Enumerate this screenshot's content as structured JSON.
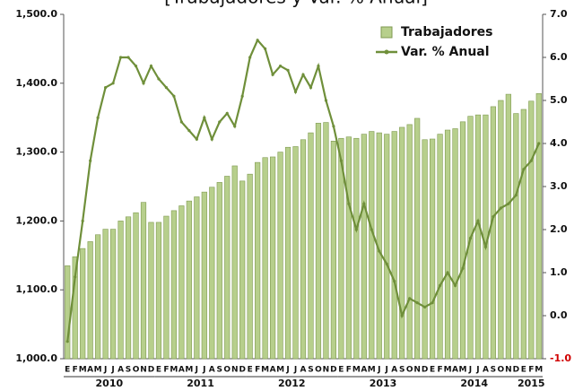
{
  "chart_data": {
    "type": "bar-line",
    "title": "[Trabajadores y Var. % Anual]",
    "categories": [
      "E",
      "F",
      "M",
      "A",
      "M",
      "J",
      "J",
      "A",
      "S",
      "O",
      "N",
      "D",
      "E",
      "F",
      "M",
      "A",
      "M",
      "J",
      "J",
      "A",
      "S",
      "O",
      "N",
      "D",
      "E",
      "F",
      "M",
      "A",
      "M",
      "J",
      "J",
      "A",
      "S",
      "O",
      "N",
      "D",
      "E",
      "F",
      "M",
      "A",
      "M",
      "J",
      "J",
      "A",
      "S",
      "O",
      "N",
      "D",
      "E",
      "F",
      "M",
      "A",
      "M",
      "J",
      "J",
      "A",
      "S",
      "O",
      "N",
      "D",
      "E",
      "F",
      "M"
    ],
    "years": [
      "2010",
      "2011",
      "2012",
      "2013",
      "2014",
      "2015"
    ],
    "series": [
      {
        "name": "Trabajadores",
        "type": "bar",
        "color": "#b7cf8c",
        "axis": "y",
        "values": [
          1135,
          1148,
          1160,
          1170,
          1180,
          1188,
          1188,
          1200,
          1206,
          1212,
          1227,
          1198,
          1198,
          1207,
          1215,
          1222,
          1229,
          1235,
          1242,
          1249,
          1256,
          1265,
          1280,
          1258,
          1268,
          1285,
          1292,
          1293,
          1300,
          1307,
          1308,
          1318,
          1328,
          1342,
          1343,
          1316,
          1320,
          1322,
          1320,
          1326,
          1330,
          1328,
          1326,
          1330,
          1336,
          1340,
          1349,
          1318,
          1319,
          1326,
          1332,
          1334,
          1344,
          1352,
          1354,
          1354,
          1366,
          1375,
          1384,
          1356,
          1362,
          1374,
          1385
        ]
      },
      {
        "name": "Var. % Anual",
        "type": "line",
        "color": "#6f8f3a",
        "axis": "y2",
        "values": [
          -0.6,
          0.9,
          2.2,
          3.6,
          4.6,
          5.3,
          5.4,
          6.0,
          6.0,
          5.8,
          5.4,
          5.8,
          5.5,
          5.3,
          5.1,
          4.5,
          4.3,
          4.1,
          4.6,
          4.1,
          4.5,
          4.7,
          4.4,
          5.1,
          6.0,
          6.4,
          6.2,
          5.6,
          5.8,
          5.7,
          5.2,
          5.6,
          5.3,
          5.8,
          5.0,
          4.4,
          3.6,
          2.6,
          2.0,
          2.6,
          2.0,
          1.5,
          1.2,
          0.8,
          0.0,
          0.4,
          0.3,
          0.2,
          0.3,
          0.7,
          1.0,
          0.7,
          1.1,
          1.8,
          2.2,
          1.6,
          2.3,
          2.5,
          2.6,
          2.8,
          3.4,
          3.6,
          4.0
        ]
      }
    ],
    "ylim": [
      1000,
      1500
    ],
    "yticks": [
      {
        "value": 1000,
        "label": "1,000.0"
      },
      {
        "value": 1100,
        "label": "1,100.0"
      },
      {
        "value": 1200,
        "label": "1,200.0"
      },
      {
        "value": 1300,
        "label": "1,300.0"
      },
      {
        "value": 1400,
        "label": "1,400.0"
      },
      {
        "value": 1500,
        "label": "1,500.0"
      }
    ],
    "y2lim": [
      -1,
      7
    ],
    "y2ticks": [
      {
        "value": -1,
        "label": "-1.0"
      },
      {
        "value": 0,
        "label": "0.0"
      },
      {
        "value": 1,
        "label": "1.0"
      },
      {
        "value": 2,
        "label": "2.0"
      },
      {
        "value": 3,
        "label": "3.0"
      },
      {
        "value": 4,
        "label": "4.0"
      },
      {
        "value": 5,
        "label": "5.0"
      },
      {
        "value": 6,
        "label": "6.0"
      },
      {
        "value": 7,
        "label": "7.0"
      }
    ],
    "legend": "top-right"
  }
}
